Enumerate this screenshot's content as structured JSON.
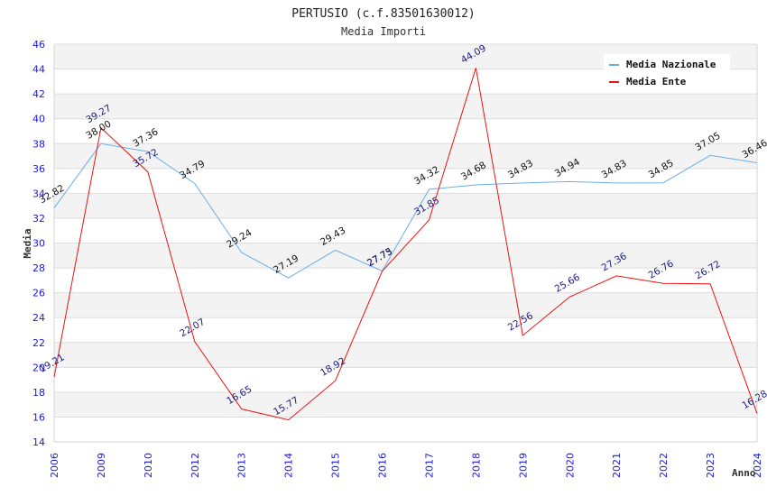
{
  "chart_data": {
    "type": "line",
    "title": "PERTUSIO (c.f.83501630012)",
    "subtitle": "Media Importi",
    "xlabel": "Anno",
    "ylabel": "Media",
    "ylim": [
      14,
      46
    ],
    "yticks": [
      14,
      16,
      18,
      20,
      22,
      24,
      26,
      28,
      30,
      32,
      34,
      36,
      38,
      40,
      42,
      44,
      46
    ],
    "categories": [
      "2006",
      "2009",
      "2010",
      "2012",
      "2013",
      "2014",
      "2015",
      "2016",
      "2017",
      "2018",
      "2019",
      "2020",
      "2021",
      "2022",
      "2023",
      "2024"
    ],
    "grid": true,
    "legend_position": "top-right",
    "series": [
      {
        "name": "Media Nazionale",
        "color": "#6aaee8",
        "label_color": "#111111",
        "values": [
          32.82,
          38.0,
          37.36,
          34.79,
          29.24,
          27.19,
          29.43,
          27.75,
          34.32,
          34.68,
          34.83,
          34.94,
          34.83,
          34.85,
          37.05,
          36.46
        ],
        "labels": [
          "32.82",
          "38.00",
          "37.36",
          "34.79",
          "29.24",
          "27.19",
          "29.43",
          "27.75",
          "34.32",
          "34.68",
          "34.83",
          "34.94",
          "34.83",
          "34.85",
          "37.05",
          "36.46"
        ]
      },
      {
        "name": "Media Ente",
        "color": "#ee1111",
        "label_color": "#1a1a80",
        "values": [
          19.21,
          39.27,
          35.72,
          22.07,
          16.65,
          15.77,
          18.92,
          27.73,
          31.85,
          44.09,
          22.56,
          25.66,
          27.36,
          26.76,
          26.72,
          16.28
        ],
        "labels": [
          "19.21",
          "39.27",
          "35.72",
          "22.07",
          "16.65",
          "15.77",
          "18.92",
          "27.73",
          "31.85",
          "44.09",
          "22.56",
          "25.66",
          "27.36",
          "26.76",
          "26.72",
          "16.28"
        ]
      }
    ]
  }
}
